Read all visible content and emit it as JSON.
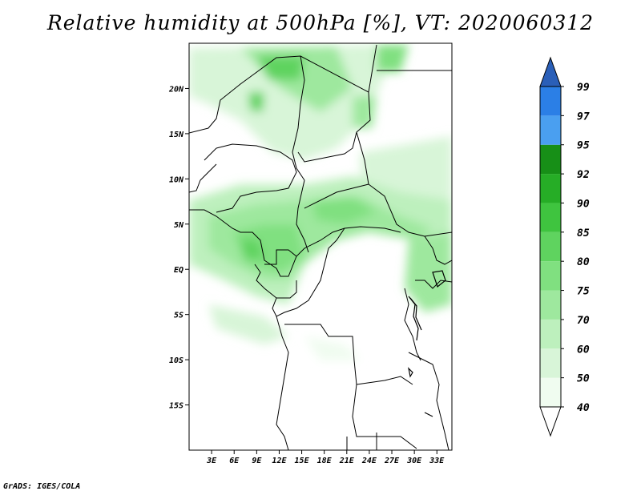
{
  "title": "Relative humidity at 500hPa [%], VT: 2020060312",
  "credit": "GrADS: IGES/COLA",
  "map": {
    "lon_range": [
      0,
      35
    ],
    "lat_range": [
      -20,
      25
    ],
    "lat_labels": [
      "20N",
      "15N",
      "10N",
      "5N",
      "EQ",
      "5S",
      "10S",
      "15S"
    ],
    "lat_values": [
      20,
      15,
      10,
      5,
      0,
      -5,
      -10,
      -15
    ],
    "lon_labels": [
      "3E",
      "6E",
      "9E",
      "12E",
      "15E",
      "18E",
      "21E",
      "24E",
      "27E",
      "30E",
      "33E"
    ],
    "lon_values": [
      3,
      6,
      9,
      12,
      15,
      18,
      21,
      24,
      27,
      30,
      33
    ]
  },
  "colorbar": {
    "levels": [
      "40",
      "50",
      "60",
      "70",
      "75",
      "80",
      "85",
      "90",
      "92",
      "95",
      "97",
      "99"
    ],
    "colors": [
      "#f0fcf0",
      "#d8f5d8",
      "#bdf0bd",
      "#9ee89e",
      "#80e080",
      "#5fd35f",
      "#3fc43f",
      "#26ad26",
      "#178f17",
      "#4a9ff0",
      "#2b7fe6",
      "#1f5fcc"
    ],
    "top_arrow_color": "#2a5fb8",
    "bottom_arrow_color": "#ffffff"
  }
}
